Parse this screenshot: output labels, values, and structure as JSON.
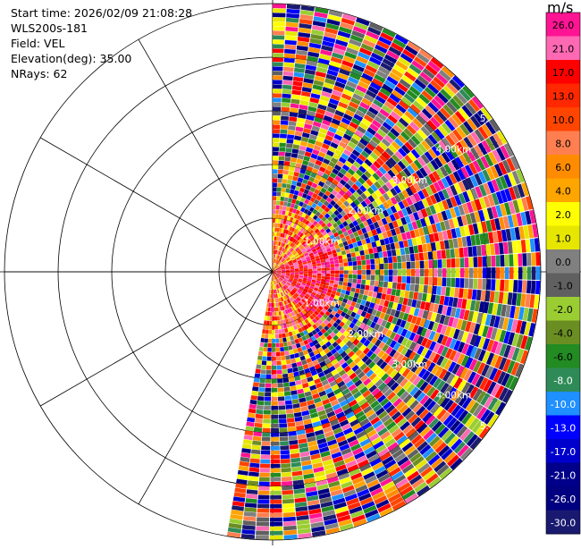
{
  "info": {
    "start_time": "Start time: 2026/02/09 21:08:28",
    "instrument": "WLS200s-181",
    "field": "Field: VEL",
    "elevation": "Elevation(deg): 35.00",
    "nrays": "NRays: 62"
  },
  "colorbar": {
    "unit": "m/s",
    "labels": [
      "26.0",
      "21.0",
      "17.0",
      "13.0",
      "10.0",
      "8.0",
      "6.0",
      "4.0",
      "2.0",
      "1.0",
      "0.0",
      "-1.0",
      "-2.0",
      "-4.0",
      "-6.0",
      "-8.0",
      "-10.0",
      "-13.0",
      "-17.0",
      "-21.0",
      "-26.0",
      "-30.0"
    ],
    "colors": [
      "#ff1493",
      "#ff69b4",
      "#ff0000",
      "#ff2800",
      "#ff4500",
      "#ff7f50",
      "#ff8c00",
      "#ffa500",
      "#ffff00",
      "#e6e600",
      "#808080",
      "#606060",
      "#9acd32",
      "#6b8e23",
      "#228b22",
      "#2e8b57",
      "#1e90ff",
      "#0000ff",
      "#0000cd",
      "#00008b",
      "#000080",
      "#191970"
    ]
  },
  "chart_data": {
    "type": "polar-ppi",
    "field": "VEL",
    "units": "m/s",
    "elevation_deg": 35.0,
    "nrays": 62,
    "range_rings_km": [
      1.0,
      2.0,
      3.0,
      4.0,
      5.0
    ],
    "range_ring_labels": [
      "1.00km",
      "2.00km",
      "3.00km",
      "4.00km",
      "5."
    ],
    "sector_azimuth_deg": [
      0,
      190
    ],
    "max_range_km": 5.0,
    "spoke_interval_deg": 30,
    "color_scale_min": -30.0,
    "color_scale_max": 26.0
  }
}
